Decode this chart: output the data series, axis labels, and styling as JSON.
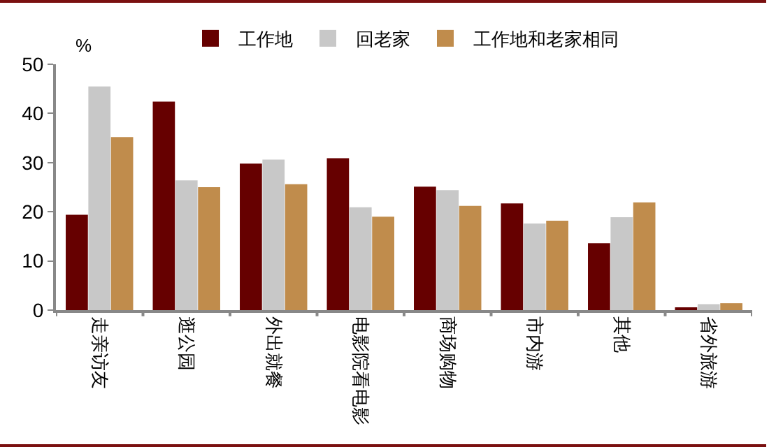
{
  "chart_data": {
    "type": "bar",
    "ylabel": "%",
    "categories": [
      "走亲访友",
      "逛公园",
      "外出就餐",
      "电影院看电影",
      "商场购物",
      "市内游",
      "其他",
      "省外旅游"
    ],
    "series": [
      {
        "name": "工作地",
        "color": "#660000",
        "values": [
          19.4,
          42.4,
          29.8,
          30.9,
          25.1,
          21.7,
          13.6,
          0.4
        ]
      },
      {
        "name": "回老家",
        "color": "#c8c8c8",
        "values": [
          45.5,
          26.4,
          30.6,
          20.9,
          24.4,
          17.6,
          18.9,
          1.2
        ]
      },
      {
        "name": "工作地和老家相同",
        "color": "#c08c4c",
        "values": [
          35.2,
          25.0,
          25.6,
          19.0,
          21.2,
          18.2,
          21.9,
          1.4
        ]
      }
    ],
    "ylim": [
      0,
      50
    ],
    "yticks": [
      0,
      10,
      20,
      30,
      40,
      50
    ],
    "grid": false,
    "legend": "top"
  }
}
